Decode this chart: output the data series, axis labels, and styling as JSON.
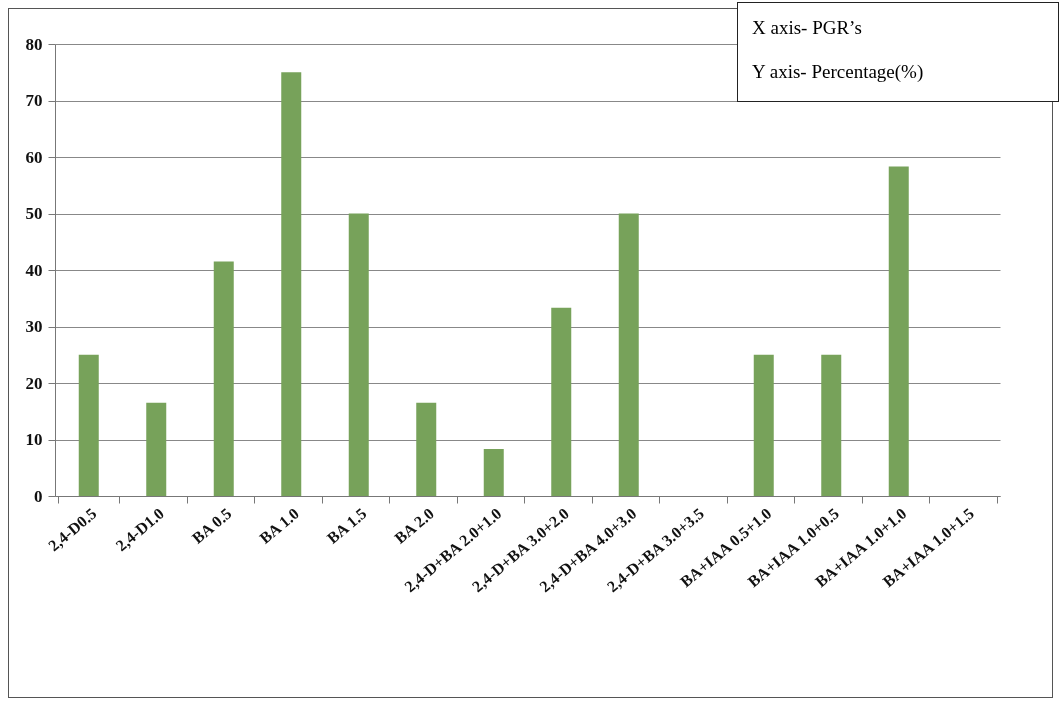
{
  "chart_data": {
    "type": "bar",
    "categories": [
      "2,4-D0.5",
      "2,4-D1.0",
      "BA 0.5",
      "BA 1.0",
      "BA 1.5",
      "BA 2.0",
      "2,4-D+BA 2.0+1.0",
      "2,4-D+BA 3.0+2.0",
      "2,4-D+BA 4.0+3.0",
      "2,4-D+BA 3.0+3.5",
      "BA+IAA 0.5+1.0",
      "BA+IAA 1.0+0.5",
      "BA+IAA 1.0+1.0",
      "BA+IAA 1.0+1.5"
    ],
    "values": [
      25,
      16.5,
      41.5,
      75,
      50,
      16.5,
      8.3,
      33.3,
      50,
      0,
      25,
      25,
      58.3,
      0
    ],
    "color": "#77a25a",
    "ylim": [
      0,
      80
    ],
    "yticks": [
      0,
      10,
      20,
      30,
      40,
      50,
      60,
      70,
      80
    ],
    "grid": "y",
    "annotations": [
      "X axis- PGR’s",
      "Y axis- Percentage(%)"
    ]
  }
}
